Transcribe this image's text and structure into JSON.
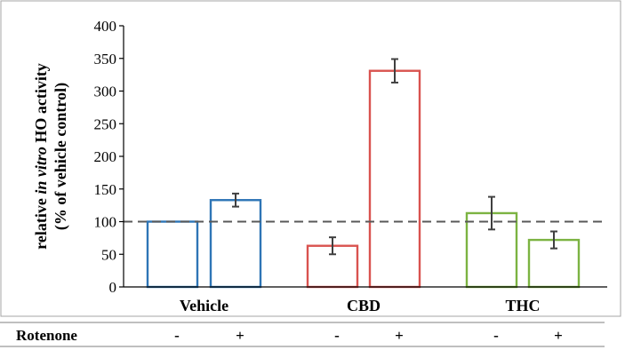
{
  "chart_data": {
    "type": "bar",
    "groups": [
      "Vehicle",
      "CBD",
      "THC"
    ],
    "bars": [
      {
        "group": "Vehicle",
        "rotenone": "-",
        "value": 100,
        "error": 0,
        "color": "#2e75b6"
      },
      {
        "group": "Vehicle",
        "rotenone": "+",
        "value": 133,
        "error": 10,
        "color": "#2e75b6"
      },
      {
        "group": "CBD",
        "rotenone": "-",
        "value": 63,
        "error": 13,
        "color": "#d9534f"
      },
      {
        "group": "CBD",
        "rotenone": "+",
        "value": 331,
        "error": 18,
        "color": "#d9534f"
      },
      {
        "group": "THC",
        "rotenone": "-",
        "value": 113,
        "error": 25,
        "color": "#7cb342"
      },
      {
        "group": "THC",
        "rotenone": "+",
        "value": 72,
        "error": 13,
        "color": "#7cb342"
      }
    ],
    "ylim": [
      0,
      400
    ],
    "yticks": [
      "0",
      "50",
      "100",
      "150",
      "200",
      "250",
      "300",
      "350",
      "400"
    ],
    "reference_line": 100,
    "ylabel_parts": [
      {
        "text": "relative ",
        "italic": false
      },
      {
        "text": "in vitro",
        "italic": true
      },
      {
        "text": " HO activity",
        "italic": false
      }
    ],
    "ylabel_line2": "(% of vehicle control)",
    "row_label": "Rotenone"
  }
}
